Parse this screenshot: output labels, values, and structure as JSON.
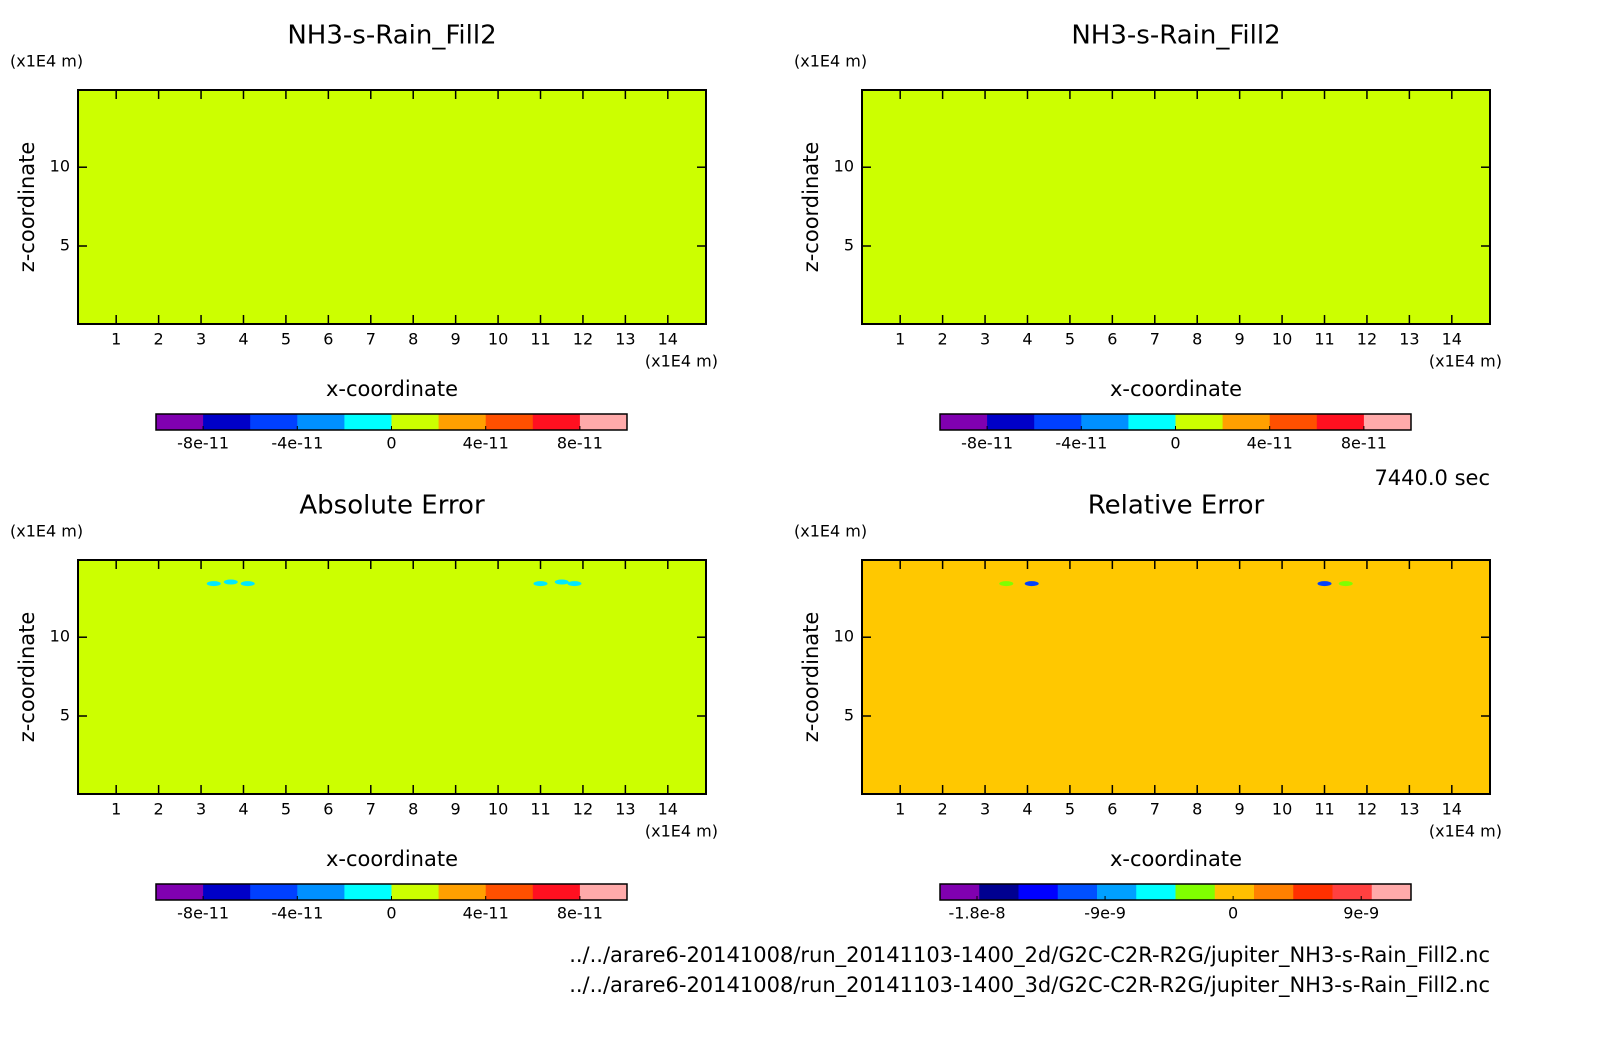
{
  "charts": [
    {
      "type": "contour",
      "title": "NH3-s-Rain_Fill2",
      "xlabel": "x-coordinate",
      "ylabel": "z-coordinate",
      "x_unit": "(x1E4 m)",
      "y_unit": "(x1E4 m)",
      "xlim": [
        0.1,
        14.9
      ],
      "ylim": [
        0.05,
        14.9
      ],
      "xticks": [
        1,
        2,
        3,
        4,
        5,
        6,
        7,
        8,
        9,
        10,
        11,
        12,
        13,
        14
      ],
      "yticks": [
        5,
        10
      ],
      "fill_color": "#ccff00",
      "features": [],
      "colorbar": {
        "lim": [
          -1e-10,
          1e-10
        ],
        "colors": [
          "#8000b0",
          "#0000c8",
          "#0040ff",
          "#0090ff",
          "#00ffff",
          "#ccff00",
          "#ffa000",
          "#ff5000",
          "#ff1020",
          "#ffaaaa"
        ],
        "ticks": [
          -8e-11,
          -4e-11,
          0,
          4e-11,
          8e-11
        ]
      }
    },
    {
      "type": "contour",
      "title": "NH3-s-Rain_Fill2",
      "xlabel": "x-coordinate",
      "ylabel": "z-coordinate",
      "x_unit": "(x1E4 m)",
      "y_unit": "(x1E4 m)",
      "xlim": [
        0.1,
        14.9
      ],
      "ylim": [
        0.05,
        14.9
      ],
      "xticks": [
        1,
        2,
        3,
        4,
        5,
        6,
        7,
        8,
        9,
        10,
        11,
        12,
        13,
        14
      ],
      "yticks": [
        5,
        10
      ],
      "fill_color": "#ccff00",
      "features": [],
      "colorbar": {
        "lim": [
          -1e-10,
          1e-10
        ],
        "colors": [
          "#8000b0",
          "#0000c8",
          "#0040ff",
          "#0090ff",
          "#00ffff",
          "#ccff00",
          "#ffa000",
          "#ff5000",
          "#ff1020",
          "#ffaaaa"
        ],
        "ticks": [
          -8e-11,
          -4e-11,
          0,
          4e-11,
          8e-11
        ]
      }
    },
    {
      "type": "contour",
      "title": "Absolute Error",
      "xlabel": "x-coordinate",
      "ylabel": "z-coordinate",
      "x_unit": "(x1E4 m)",
      "y_unit": "(x1E4 m)",
      "xlim": [
        0.1,
        14.9
      ],
      "ylim": [
        0.05,
        14.9
      ],
      "xticks": [
        1,
        2,
        3,
        4,
        5,
        6,
        7,
        8,
        9,
        10,
        11,
        12,
        13,
        14
      ],
      "yticks": [
        5,
        10
      ],
      "fill_color": "#ccff00",
      "features": [
        {
          "x": 3.3,
          "y": 13.4,
          "color": "#00e8ff"
        },
        {
          "x": 3.7,
          "y": 13.5,
          "color": "#00e8ff"
        },
        {
          "x": 4.1,
          "y": 13.4,
          "color": "#00e8ff"
        },
        {
          "x": 11.0,
          "y": 13.4,
          "color": "#00e8ff"
        },
        {
          "x": 11.5,
          "y": 13.5,
          "color": "#00e8ff"
        },
        {
          "x": 11.8,
          "y": 13.4,
          "color": "#00e8ff"
        }
      ],
      "colorbar": {
        "lim": [
          -1e-10,
          1e-10
        ],
        "colors": [
          "#8000b0",
          "#0000c8",
          "#0040ff",
          "#0090ff",
          "#00ffff",
          "#ccff00",
          "#ffa000",
          "#ff5000",
          "#ff1020",
          "#ffaaaa"
        ],
        "ticks": [
          -8e-11,
          -4e-11,
          0,
          4e-11,
          8e-11
        ]
      }
    },
    {
      "type": "contour",
      "title": "Relative Error",
      "xlabel": "x-coordinate",
      "ylabel": "z-coordinate",
      "x_unit": "(x1E4 m)",
      "y_unit": "(x1E4 m)",
      "xlim": [
        0.1,
        14.9
      ],
      "ylim": [
        0.05,
        14.9
      ],
      "xticks": [
        1,
        2,
        3,
        4,
        5,
        6,
        7,
        8,
        9,
        10,
        11,
        12,
        13,
        14
      ],
      "yticks": [
        5,
        10
      ],
      "fill_color": "#ffc800",
      "features": [
        {
          "x": 3.5,
          "y": 13.4,
          "color": "#80ff00"
        },
        {
          "x": 4.1,
          "y": 13.4,
          "color": "#0040ff"
        },
        {
          "x": 11.0,
          "y": 13.4,
          "color": "#0040ff"
        },
        {
          "x": 11.5,
          "y": 13.4,
          "color": "#80ff00"
        }
      ],
      "colorbar": {
        "lim": [
          -2.06e-08,
          1.25e-08
        ],
        "colors": [
          "#8000b0",
          "#000090",
          "#0000ff",
          "#0050ff",
          "#00a0ff",
          "#00ffff",
          "#80ff00",
          "#ffc000",
          "#ff8000",
          "#ff3000",
          "#ff4040",
          "#ffaaaa"
        ],
        "ticks": [
          -1.8e-08,
          -9e-09,
          0,
          9e-09
        ]
      }
    }
  ],
  "time_label": "7440.0 sec",
  "files": [
    "../../arare6-20141008/run_20141103-1400_2d/G2C-C2R-R2G/jupiter_NH3-s-Rain_Fill2.nc",
    "../../arare6-20141008/run_20141103-1400_3d/G2C-C2R-R2G/jupiter_NH3-s-Rain_Fill2.nc"
  ]
}
